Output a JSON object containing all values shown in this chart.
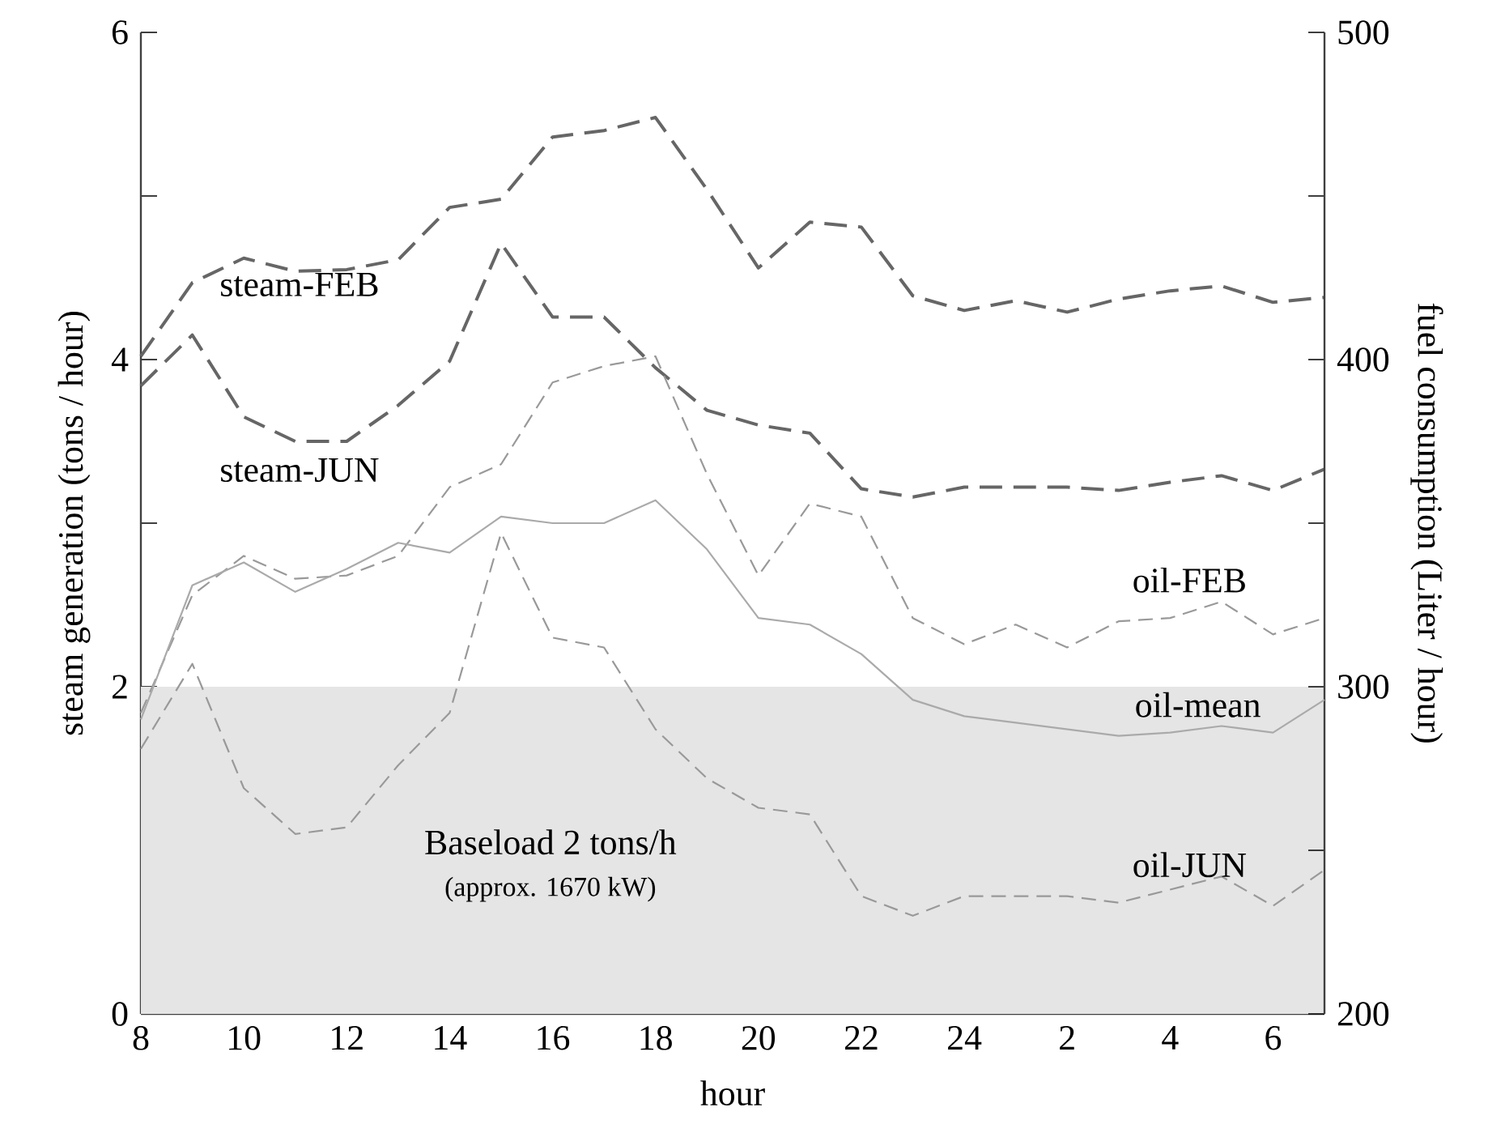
{
  "chart_data": {
    "type": "line",
    "xlabel": "hour",
    "ylabel": "steam generation (tons / hour)",
    "y2label": "fuel consumption (Liter / hour)",
    "categories": [
      "8",
      null,
      "10",
      null,
      "12",
      null,
      "14",
      null,
      "16",
      null,
      "18",
      null,
      "20",
      null,
      "22",
      null,
      "24",
      null,
      "2",
      null,
      "4",
      null,
      "6",
      null
    ],
    "ylim": [
      0,
      6
    ],
    "yticks": [
      0,
      {
        "value": 1,
        "label": null
      },
      2,
      {
        "value": 3,
        "label": null
      },
      4,
      {
        "value": 5,
        "label": null
      },
      6
    ],
    "y2lim": [
      200,
      500
    ],
    "y2ticks": [
      200,
      {
        "value": 250,
        "label": null
      },
      300,
      {
        "value": 350,
        "label": null
      },
      400,
      {
        "value": 450,
        "label": null
      },
      500
    ],
    "series": [
      {
        "name": "steam-FEB",
        "color": "#666666",
        "line_style": "dashed",
        "values": [
          4.02,
          4.47,
          4.62,
          4.54,
          4.55,
          4.61,
          4.93,
          4.98,
          5.36,
          5.4,
          5.48,
          5.04,
          4.56,
          4.84,
          4.81,
          4.39,
          4.3,
          4.36,
          4.29,
          4.37,
          4.42,
          4.45,
          4.35,
          4.38
        ]
      },
      {
        "name": "steam-JUN",
        "color": "#666666",
        "line_style": "dashed",
        "values": [
          3.84,
          4.15,
          3.65,
          3.5,
          3.5,
          3.72,
          3.99,
          4.71,
          4.26,
          4.26,
          3.95,
          3.69,
          3.6,
          3.55,
          3.21,
          3.16,
          3.22,
          3.22,
          3.22,
          3.2,
          3.25,
          3.29,
          3.2,
          3.33
        ]
      },
      {
        "name": "oil-FEB",
        "color": "#999999",
        "line_style": "dashed",
        "axis": "y2",
        "values": [
          292,
          328,
          340,
          333,
          334,
          340,
          361,
          368,
          393,
          398,
          401,
          365,
          334,
          356,
          352,
          321,
          313,
          319,
          312,
          320,
          321,
          326,
          316,
          321
        ]
      },
      {
        "name": "oil-mean",
        "color": "#aaaaaa",
        "line_style": "solid",
        "axis": "y2",
        "values": [
          290,
          331,
          338,
          329,
          336,
          344,
          341,
          352,
          350,
          350,
          357,
          342,
          321,
          319,
          310,
          296,
          291,
          289,
          287,
          285,
          286,
          288,
          286,
          296
        ]
      },
      {
        "name": "oil-JUN",
        "color": "#999999",
        "line_style": "dashed",
        "axis": "y2",
        "values": [
          281,
          307,
          269,
          255,
          257,
          276,
          292,
          347,
          315,
          312,
          287,
          272,
          263,
          261,
          236,
          230,
          236,
          236,
          236,
          234,
          238,
          242,
          233,
          244
        ]
      }
    ],
    "bands": [
      {
        "axis": "y",
        "from": 0,
        "to": 2,
        "label": "Baseload 2 tons/h",
        "color": "#e5e5e5"
      }
    ],
    "annotations": [
      "(approx. 1670 kW)"
    ]
  }
}
